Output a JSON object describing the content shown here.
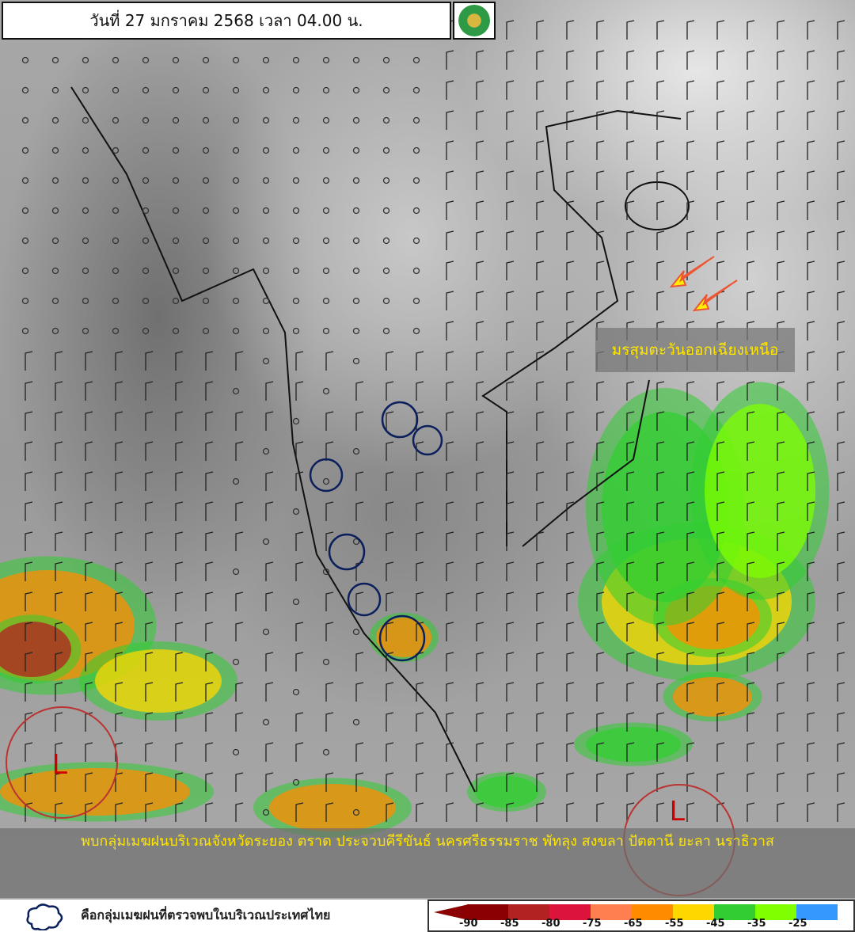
{
  "header": {
    "title": "วันที่ 27 มกราคม 2568 เวลา 04.00 น."
  },
  "annotations": {
    "monsoon_label": "มรสุมตะวันออกเฉียงเหนือ",
    "low_pressure_symbol": "L",
    "arrow_color": "#ffee00"
  },
  "banner": {
    "text": "พบกลุ่มเมฆฝนบริเวณจังหวัดระยอง ตราด ประจวบคีรีขันธ์ นครศรีธรรมราช พัทลุง สงขลา ปัตตานี ยะลา นราธิวาส"
  },
  "legend": {
    "cloud_icon": "cloud-outline-icon",
    "cloud_text": "คือกลุ่มเมฆฝนที่ตรวจพบในบริเวณประเทศไทย",
    "scale": [
      {
        "label": "-90",
        "color": "#8b0000"
      },
      {
        "label": "-85",
        "color": "#b22222"
      },
      {
        "label": "-80",
        "color": "#dc143c"
      },
      {
        "label": "-75",
        "color": "#ff7f50"
      },
      {
        "label": "-65",
        "color": "#ff8c00"
      },
      {
        "label": "-55",
        "color": "#ffd700"
      },
      {
        "label": "-45",
        "color": "#32cd32"
      },
      {
        "label": "-35",
        "color": "#7fff00"
      },
      {
        "label": "-25",
        "color": "#3399ff"
      }
    ]
  }
}
